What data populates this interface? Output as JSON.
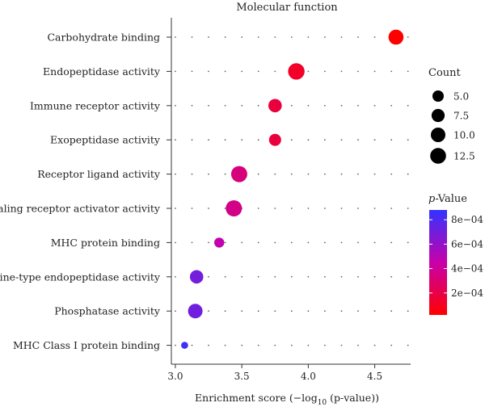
{
  "chart_data": {
    "type": "scatter",
    "title": "Molecular function",
    "xlabel_parts": [
      "Enrichment score (−log",
      "10",
      " (p-value))"
    ],
    "xlim": [
      2.97,
      4.77
    ],
    "xticks": [
      3.0,
      3.5,
      4.0,
      4.5
    ],
    "xtick_labels": [
      "3.0",
      "3.5",
      "4.0",
      "4.5"
    ],
    "grid": "dotted",
    "categories": [
      "Carbohydrate binding",
      "Endopeptidase activity",
      "Immune receptor activity",
      "Exopeptidase activity",
      "Receptor ligand activity",
      "Signaling receptor activator activity",
      "MHC protein binding",
      "Serine-type endopeptidase activity",
      "Phosphatase activity",
      "MHC Class I protein binding"
    ],
    "points": [
      {
        "category": "Carbohydrate binding",
        "x": 4.66,
        "count": 11,
        "pvalue": 2.19e-05
      },
      {
        "category": "Endopeptidase activity",
        "x": 3.91,
        "count": 14,
        "pvalue": 0.000123
      },
      {
        "category": "Immune receptor activity",
        "x": 3.75,
        "count": 8,
        "pvalue": 0.000178
      },
      {
        "category": "Exopeptidase activity",
        "x": 3.75,
        "count": 6,
        "pvalue": 0.000178
      },
      {
        "category": "Receptor ligand activity",
        "x": 3.48,
        "count": 13,
        "pvalue": 0.000331
      },
      {
        "category": "Signaling receptor activator activity",
        "x": 3.44,
        "count": 13,
        "pvalue": 0.000363
      },
      {
        "category": "MHC protein binding",
        "x": 3.33,
        "count": 3.5,
        "pvalue": 0.000468
      },
      {
        "category": "Serine-type endopeptidase activity",
        "x": 3.16,
        "count": 8,
        "pvalue": 0.000692
      },
      {
        "category": "Phosphatase activity",
        "x": 3.15,
        "count": 10,
        "pvalue": 0.000708
      },
      {
        "category": "MHC Class I protein binding",
        "x": 3.07,
        "count": 1,
        "pvalue": 0.000851
      }
    ],
    "size_legend": {
      "title": "Count",
      "values": [
        5.0,
        7.5,
        10.0,
        12.5
      ],
      "labels": [
        "5.0",
        "7.5",
        "10.0",
        "12.5"
      ]
    },
    "color_legend": {
      "title_italic": "p",
      "title_rest": "-Value",
      "range": [
        2e-05,
        0.00088
      ],
      "low_color": "#ff0000",
      "high_color": "#3333ff",
      "ticks": [
        0.0008,
        0.0006,
        0.0004,
        0.0002
      ],
      "tick_labels": [
        "8e−04",
        "6e−04",
        "4e−04",
        "2e−04"
      ]
    }
  }
}
